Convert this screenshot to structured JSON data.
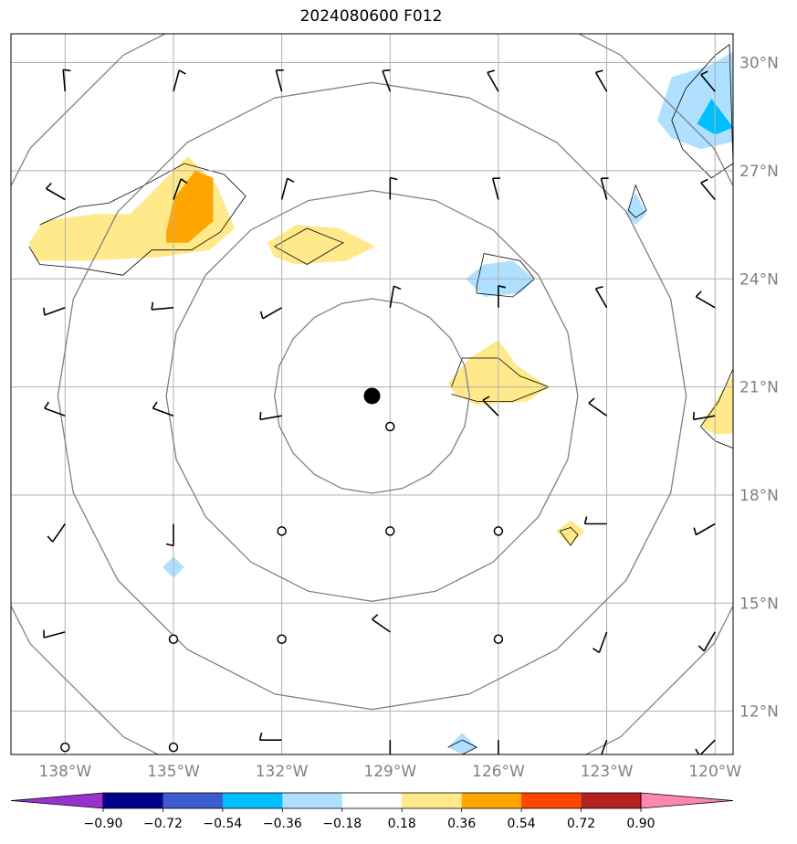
{
  "title": "2024080600 F012",
  "map": {
    "lon_range": [
      -139.5,
      -119.5
    ],
    "lat_range": [
      10.8,
      30.8
    ],
    "lat_ticks": [
      {
        "value": 12,
        "label": "12°N"
      },
      {
        "value": 15,
        "label": "15°N"
      },
      {
        "value": 18,
        "label": "18°N"
      },
      {
        "value": 21,
        "label": "21°N"
      },
      {
        "value": 24,
        "label": "24°N"
      },
      {
        "value": 27,
        "label": "27°N"
      },
      {
        "value": 30,
        "label": "30°N"
      }
    ],
    "lon_ticks": [
      {
        "value": -138,
        "label": "138°W"
      },
      {
        "value": -135,
        "label": "135°W"
      },
      {
        "value": -132,
        "label": "132°W"
      },
      {
        "value": -129,
        "label": "129°W"
      },
      {
        "value": -126,
        "label": "126°W"
      },
      {
        "value": -123,
        "label": "123°W"
      },
      {
        "value": -120,
        "label": "120°W"
      }
    ],
    "center": {
      "lon": -129.5,
      "lat": 20.75
    },
    "range_ring_radii_deg": [
      2.7,
      5.7,
      8.7,
      11.7
    ],
    "grid_color": "#b0b0b0",
    "ring_color": "#808080"
  },
  "colorbar": {
    "colors": [
      "#9932cc",
      "#00008b",
      "#3b5bcf",
      "#00bfff",
      "#b0e0ff",
      "#ffffff",
      "#ffe98a",
      "#ffa500",
      "#ff4500",
      "#b22222",
      "#ff85b4"
    ],
    "tick_labels": [
      "−0.90",
      "−0.72",
      "−0.54",
      "−0.36",
      "−0.18",
      "0.18",
      "0.36",
      "0.54",
      "0.72",
      "0.90"
    ]
  },
  "chart_data": {
    "type": "map",
    "calm_stations": [
      {
        "lon": -129,
        "lat": 19.9
      },
      {
        "lon": -132,
        "lat": 17.0
      },
      {
        "lon": -129,
        "lat": 17.0
      },
      {
        "lon": -126,
        "lat": 17.0
      },
      {
        "lon": -135,
        "lat": 14.0
      },
      {
        "lon": -132,
        "lat": 14.0
      },
      {
        "lon": -126,
        "lat": 14.0
      },
      {
        "lon": -138,
        "lat": 11.0
      },
      {
        "lon": -135,
        "lat": 11.0
      }
    ],
    "barbs": [
      {
        "lon": -138,
        "lat": 29.2,
        "dir": 355,
        "flags": 1
      },
      {
        "lon": -135,
        "lat": 29.2,
        "dir": 15,
        "flags": 1
      },
      {
        "lon": -132,
        "lat": 29.2,
        "dir": 345,
        "flags": 1
      },
      {
        "lon": -129,
        "lat": 29.2,
        "dir": 340,
        "flags": 1
      },
      {
        "lon": -126,
        "lat": 29.2,
        "dir": 330,
        "flags": 1
      },
      {
        "lon": -123,
        "lat": 29.2,
        "dir": 330,
        "flags": 1
      },
      {
        "lon": -120,
        "lat": 29.2,
        "dir": 320,
        "flags": 1
      },
      {
        "lon": -138,
        "lat": 26.2,
        "dir": 300,
        "flags": 1
      },
      {
        "lon": -135,
        "lat": 26.2,
        "dir": 20,
        "flags": 1
      },
      {
        "lon": -132,
        "lat": 26.2,
        "dir": 15,
        "flags": 1
      },
      {
        "lon": -129,
        "lat": 26.2,
        "dir": 0,
        "flags": 1
      },
      {
        "lon": -126,
        "lat": 26.2,
        "dir": 345,
        "flags": 1
      },
      {
        "lon": -123,
        "lat": 26.2,
        "dir": 345,
        "flags": 1
      },
      {
        "lon": -120,
        "lat": 26.2,
        "dir": 320,
        "flags": 1
      },
      {
        "lon": -138,
        "lat": 23.2,
        "dir": 250,
        "flags": 1
      },
      {
        "lon": -135,
        "lat": 23.2,
        "dir": 265,
        "flags": 1
      },
      {
        "lon": -132,
        "lat": 23.2,
        "dir": 240,
        "flags": 1
      },
      {
        "lon": -129,
        "lat": 23.2,
        "dir": 10,
        "flags": 1
      },
      {
        "lon": -126,
        "lat": 23.2,
        "dir": 0,
        "flags": 1
      },
      {
        "lon": -123,
        "lat": 23.2,
        "dir": 330,
        "flags": 1
      },
      {
        "lon": -120,
        "lat": 23.2,
        "dir": 300,
        "flags": 1
      },
      {
        "lon": -138,
        "lat": 20.2,
        "dir": 290,
        "flags": 1
      },
      {
        "lon": -135,
        "lat": 20.2,
        "dir": 290,
        "flags": 1
      },
      {
        "lon": -132,
        "lat": 20.2,
        "dir": 260,
        "flags": 1
      },
      {
        "lon": -126,
        "lat": 20.2,
        "dir": 315,
        "flags": 1
      },
      {
        "lon": -123,
        "lat": 20.2,
        "dir": 305,
        "flags": 1
      },
      {
        "lon": -120,
        "lat": 20.2,
        "dir": 260,
        "flags": 1
      },
      {
        "lon": -138,
        "lat": 17.2,
        "dir": 215,
        "flags": 1
      },
      {
        "lon": -135,
        "lat": 17.2,
        "dir": 180,
        "flags": 1
      },
      {
        "lon": -123,
        "lat": 17.2,
        "dir": 270,
        "flags": 1
      },
      {
        "lon": -120,
        "lat": 17.2,
        "dir": 240,
        "flags": 1
      },
      {
        "lon": -138,
        "lat": 14.2,
        "dir": 255,
        "flags": 1
      },
      {
        "lon": -129,
        "lat": 14.2,
        "dir": 305,
        "flags": 1
      },
      {
        "lon": -123,
        "lat": 14.2,
        "dir": 200,
        "flags": 1
      },
      {
        "lon": -120,
        "lat": 14.2,
        "dir": 210,
        "flags": 1
      },
      {
        "lon": -132,
        "lat": 11.2,
        "dir": 270,
        "flags": 1
      },
      {
        "lon": -129,
        "lat": 11.2,
        "dir": 180,
        "flags": 1
      },
      {
        "lon": -126,
        "lat": 11.2,
        "dir": 180,
        "flags": 1
      },
      {
        "lon": -123,
        "lat": 11.2,
        "dir": 200,
        "flags": 1
      },
      {
        "lon": -120,
        "lat": 11.2,
        "dir": 225,
        "flags": 1
      }
    ],
    "shaded_regions": [
      {
        "level": 0.36,
        "color": "#ffe98a",
        "points": [
          [
            -139,
            25.0
          ],
          [
            -138.6,
            25.6
          ],
          [
            -137.2,
            25.8
          ],
          [
            -136.2,
            25.8
          ],
          [
            -135.2,
            26.8
          ],
          [
            -134.6,
            27.4
          ],
          [
            -133.8,
            26.6
          ],
          [
            -133.3,
            25.4
          ],
          [
            -134.0,
            24.8
          ],
          [
            -135.4,
            24.6
          ],
          [
            -137.5,
            24.5
          ],
          [
            -138.8,
            24.5
          ]
        ]
      },
      {
        "level": 0.54,
        "color": "#ffa500",
        "points": [
          [
            -135.2,
            25.3
          ],
          [
            -135.0,
            26.2
          ],
          [
            -134.4,
            27.0
          ],
          [
            -133.9,
            26.8
          ],
          [
            -133.9,
            25.6
          ],
          [
            -134.6,
            25.0
          ],
          [
            -135.2,
            25.0
          ]
        ]
      },
      {
        "level": 0.36,
        "color": "#ffe98a",
        "points": [
          [
            -132.4,
            25.0
          ],
          [
            -131.6,
            25.5
          ],
          [
            -130.4,
            25.4
          ],
          [
            -129.4,
            24.9
          ],
          [
            -130.2,
            24.5
          ],
          [
            -131.6,
            24.4
          ],
          [
            -132.2,
            24.6
          ]
        ]
      },
      {
        "level": 0.36,
        "color": "#ffe98a",
        "points": [
          [
            -127.4,
            21.1
          ],
          [
            -126.8,
            21.8
          ],
          [
            -126.0,
            22.3
          ],
          [
            -125.5,
            21.6
          ],
          [
            -124.6,
            21.0
          ],
          [
            -125.2,
            20.6
          ],
          [
            -126.6,
            20.5
          ],
          [
            -127.2,
            20.8
          ]
        ]
      },
      {
        "level": 0.36,
        "color": "#ffe98a",
        "points": [
          [
            -124.4,
            17.0
          ],
          [
            -124.0,
            17.3
          ],
          [
            -123.6,
            17.0
          ],
          [
            -124.0,
            16.6
          ]
        ]
      },
      {
        "level": 0.36,
        "color": "#ffe98a",
        "points": [
          [
            -120.4,
            19.9
          ],
          [
            -119.8,
            20.9
          ],
          [
            -119.5,
            21.3
          ],
          [
            -119.5,
            19.7
          ],
          [
            -120.0,
            19.7
          ]
        ]
      },
      {
        "level": -0.36,
        "color": "#b0e0ff",
        "points": [
          [
            -126.9,
            24.0
          ],
          [
            -126.4,
            24.4
          ],
          [
            -125.6,
            24.5
          ],
          [
            -125.0,
            24.0
          ],
          [
            -125.4,
            23.6
          ],
          [
            -126.4,
            23.5
          ]
        ]
      },
      {
        "level": -0.36,
        "color": "#b0e0ff",
        "points": [
          [
            -122.5,
            25.8
          ],
          [
            -122.2,
            26.4
          ],
          [
            -121.9,
            25.8
          ],
          [
            -122.2,
            25.5
          ]
        ]
      },
      {
        "level": -0.36,
        "color": "#b0e0ff",
        "points": [
          [
            -121.6,
            28.4
          ],
          [
            -121.2,
            29.6
          ],
          [
            -120.2,
            29.9
          ],
          [
            -119.5,
            30.3
          ],
          [
            -119.5,
            27.8
          ],
          [
            -120.4,
            27.6
          ],
          [
            -121.2,
            27.9
          ]
        ]
      },
      {
        "level": -0.54,
        "color": "#00bfff",
        "points": [
          [
            -120.5,
            28.3
          ],
          [
            -120.1,
            29.0
          ],
          [
            -119.5,
            28.2
          ],
          [
            -120.0,
            28.0
          ]
        ]
      },
      {
        "level": -0.36,
        "color": "#b0e0ff",
        "points": [
          [
            -135.3,
            16.0
          ],
          [
            -135.0,
            16.3
          ],
          [
            -134.7,
            16.0
          ],
          [
            -135.0,
            15.7
          ]
        ]
      },
      {
        "level": -0.36,
        "color": "#b0e0ff",
        "points": [
          [
            -127.4,
            11.0
          ],
          [
            -127.0,
            11.4
          ],
          [
            -126.6,
            11.0
          ],
          [
            -127.0,
            10.8
          ]
        ]
      }
    ],
    "contour_lines": [
      [
        [
          -138.7,
          25.5
        ],
        [
          -137.6,
          26.0
        ],
        [
          -136.8,
          26.1
        ],
        [
          -135.8,
          26.6
        ],
        [
          -134.7,
          27.2
        ],
        [
          -133.6,
          26.9
        ],
        [
          -133.0,
          26.3
        ],
        [
          -133.7,
          25.3
        ],
        [
          -134.5,
          24.8
        ],
        [
          -135.6,
          24.8
        ],
        [
          -136.4,
          24.1
        ],
        [
          -137.6,
          24.3
        ],
        [
          -138.7,
          24.4
        ],
        [
          -139.0,
          24.9
        ]
      ],
      [
        [
          -132.2,
          24.9
        ],
        [
          -131.3,
          25.4
        ],
        [
          -130.3,
          25.0
        ],
        [
          -131.3,
          24.4
        ],
        [
          -132.2,
          24.9
        ]
      ],
      [
        [
          -127.3,
          21.0
        ],
        [
          -127.0,
          21.8
        ],
        [
          -126.0,
          21.8
        ],
        [
          -125.4,
          21.3
        ],
        [
          -124.6,
          21.0
        ],
        [
          -125.6,
          20.6
        ],
        [
          -126.6,
          20.6
        ],
        [
          -127.3,
          20.8
        ]
      ],
      [
        [
          -126.6,
          23.8
        ],
        [
          -126.4,
          24.7
        ],
        [
          -125.4,
          24.5
        ],
        [
          -125.0,
          24.0
        ],
        [
          -125.6,
          23.5
        ],
        [
          -126.6,
          23.6
        ],
        [
          -126.6,
          23.8
        ]
      ],
      [
        [
          -122.4,
          25.9
        ],
        [
          -122.2,
          26.6
        ],
        [
          -121.9,
          25.9
        ],
        [
          -122.2,
          25.7
        ],
        [
          -122.4,
          25.9
        ]
      ],
      [
        [
          -121.2,
          28.4
        ],
        [
          -120.8,
          29.3
        ],
        [
          -120.0,
          30.2
        ],
        [
          -119.6,
          30.5
        ],
        [
          -119.5,
          27.2
        ],
        [
          -120.1,
          26.8
        ],
        [
          -120.9,
          27.6
        ],
        [
          -121.2,
          28.4
        ]
      ],
      [
        [
          -124.3,
          17.0
        ],
        [
          -124.0,
          17.1
        ],
        [
          -123.8,
          16.9
        ],
        [
          -124.0,
          16.6
        ],
        [
          -124.3,
          17.0
        ]
      ],
      [
        [
          -120.4,
          19.9
        ],
        [
          -119.9,
          20.6
        ],
        [
          -119.5,
          21.5
        ],
        [
          -119.5,
          19.3
        ],
        [
          -120.0,
          19.5
        ],
        [
          -120.4,
          19.9
        ]
      ],
      [
        [
          -127.4,
          11.0
        ],
        [
          -127.0,
          11.2
        ],
        [
          -126.6,
          11.0
        ],
        [
          -127.0,
          10.8
        ]
      ]
    ]
  }
}
